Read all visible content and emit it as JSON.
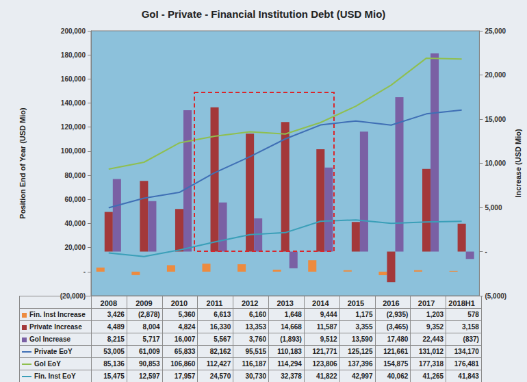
{
  "chart_data": {
    "type": "bar",
    "title": "GoI - Private - Financial Institution Debt (USD Mio)",
    "y_label": "Position End of Year (USD Mio)",
    "y2_label": "Increase (USD Mio)",
    "categories": [
      "2008",
      "2009",
      "2010",
      "2011",
      "2012",
      "2013",
      "2014",
      "2015",
      "2016",
      "2017",
      "2018H1"
    ],
    "ylim": [
      -20000,
      200000
    ],
    "yticks": [
      {
        "value": -20000,
        "label": "(20,000)"
      },
      {
        "value": 0,
        "label": "-"
      },
      {
        "value": 20000,
        "label": "20,000"
      },
      {
        "value": 40000,
        "label": "40,000"
      },
      {
        "value": 60000,
        "label": "60,000"
      },
      {
        "value": 80000,
        "label": "80,000"
      },
      {
        "value": 100000,
        "label": "100,000"
      },
      {
        "value": 120000,
        "label": "120,000"
      },
      {
        "value": 140000,
        "label": "140,000"
      },
      {
        "value": 160000,
        "label": "160,000"
      },
      {
        "value": 180000,
        "label": "180,000"
      },
      {
        "value": 200000,
        "label": "200,000"
      }
    ],
    "y2lim": [
      -5000,
      25000
    ],
    "y2ticks": [
      {
        "value": -5000,
        "label": "(5,000)"
      },
      {
        "value": 0,
        "label": "-"
      },
      {
        "value": 5000,
        "label": "5,000"
      },
      {
        "value": 10000,
        "label": "10,000"
      },
      {
        "value": 15000,
        "label": "15,000"
      },
      {
        "value": 20000,
        "label": "20,000"
      },
      {
        "value": 25000,
        "label": "25,000"
      }
    ],
    "grid": false,
    "series": [
      {
        "name": "Fin. Inst Increase",
        "type": "bar",
        "axis": "y",
        "color": "#ed8b3f",
        "values": [
          3426,
          -2878,
          5360,
          6613,
          6160,
          1648,
          9444,
          1175,
          -2935,
          1203,
          578
        ],
        "value_labels": [
          "3,426",
          "(2,878)",
          "5,360",
          "6,613",
          "6,160",
          "1,648",
          "9,444",
          "1,175",
          "(2,935)",
          "1,203",
          "578"
        ]
      },
      {
        "name": "Private Increase",
        "type": "bar",
        "axis": "y2",
        "color": "#a3383a",
        "values": [
          4489,
          8004,
          4824,
          16330,
          13353,
          14668,
          11587,
          3355,
          -3465,
          9352,
          3158
        ],
        "value_labels": [
          "4,489",
          "8,004",
          "4,824",
          "16,330",
          "13,353",
          "14,668",
          "11,587",
          "3,355",
          "(3,465)",
          "9,352",
          "3,158"
        ]
      },
      {
        "name": "GoI Increase",
        "type": "bar",
        "axis": "y2",
        "color": "#7a60a4",
        "values": [
          8215,
          5717,
          16007,
          5567,
          3760,
          -1893,
          9512,
          13590,
          17480,
          22443,
          -837
        ],
        "value_labels": [
          "8,215",
          "5,717",
          "16,007",
          "5,567",
          "3,760",
          "(1,893)",
          "9,512",
          "13,590",
          "17,480",
          "22,443",
          "(837)"
        ]
      },
      {
        "name": "Private EoY",
        "type": "line",
        "axis": "y",
        "color": "#3f6fb5",
        "values": [
          53005,
          61009,
          65833,
          82162,
          95515,
          110183,
          121771,
          125125,
          121661,
          131012,
          134170
        ],
        "value_labels": [
          "53,005",
          "61,009",
          "65,833",
          "82,162",
          "95,515",
          "110,183",
          "121,771",
          "125,125",
          "121,661",
          "131,012",
          "134,170"
        ]
      },
      {
        "name": "GoI EoY",
        "type": "line",
        "axis": "y",
        "color": "#8fbf4f",
        "values": [
          85136,
          90853,
          106860,
          112427,
          116187,
          114294,
          123806,
          137396,
          154875,
          177318,
          176481
        ],
        "value_labels": [
          "85,136",
          "90,853",
          "106,860",
          "112,427",
          "116,187",
          "114,294",
          "123,806",
          "137,396",
          "154,875",
          "177,318",
          "176,481"
        ]
      },
      {
        "name": "Fin. Inst EoY",
        "type": "line",
        "axis": "y",
        "color": "#3a9fb8",
        "values": [
          15475,
          12597,
          17957,
          24570,
          30730,
          32378,
          41822,
          42997,
          40062,
          41265,
          41843
        ],
        "value_labels": [
          "15,475",
          "12,597",
          "17,957",
          "24,570",
          "30,730",
          "32,378",
          "41,822",
          "42,997",
          "40,062",
          "41,265",
          "41,843"
        ]
      }
    ]
  }
}
